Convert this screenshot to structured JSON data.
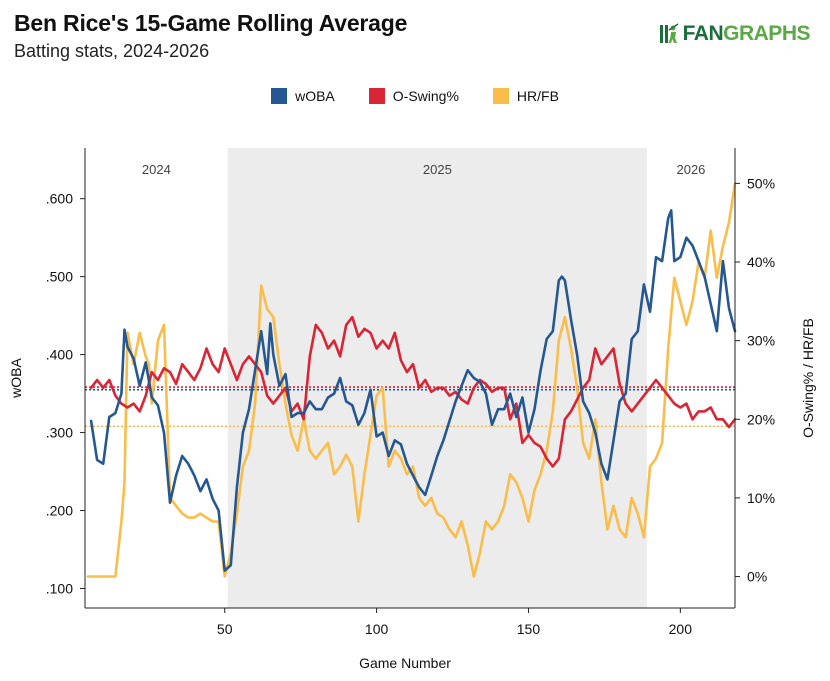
{
  "header": {
    "title": "Ben Rice's 15-Game Rolling Average",
    "subtitle": "Batting stats, 2024-2026",
    "logo_fan": "FAN",
    "logo_graphs": "GRAPHS"
  },
  "colors": {
    "woba": "#255892",
    "oswing": "#d92535",
    "hrfb": "#fbbd4a",
    "season_shade": "#ececec"
  },
  "icons": {
    "logo": "batter-silhouette-icon"
  },
  "chart_data": {
    "type": "line",
    "xlabel": "Game Number",
    "ylabel_left": "wOBA",
    "ylabel_right": "O-Swing% / HR/FB",
    "xlim": [
      4,
      218
    ],
    "ylim_left": [
      0.075,
      0.665
    ],
    "ylim_right": [
      -0.04,
      0.545
    ],
    "x_ticks": [
      50,
      100,
      150,
      200
    ],
    "x_tick_labels": [
      "50",
      "100",
      "150",
      "200"
    ],
    "y_left_ticks": [
      0.1,
      0.2,
      0.3,
      0.4,
      0.5,
      0.6
    ],
    "y_left_tick_labels": [
      ".100",
      ".200",
      ".300",
      ".400",
      ".500",
      ".600"
    ],
    "y_right_ticks": [
      0,
      0.1,
      0.2,
      0.3,
      0.4,
      0.5
    ],
    "y_right_tick_labels": [
      "0%",
      "10%",
      "20%",
      "30%",
      "40%",
      "50%"
    ],
    "seasons": [
      {
        "label": "2024",
        "start": 4,
        "end": 51,
        "shaded": false
      },
      {
        "label": "2025",
        "start": 51,
        "end": 189,
        "shaded": true
      },
      {
        "label": "2026",
        "start": 189,
        "end": 218,
        "shaded": false
      }
    ],
    "reference_lines": [
      {
        "series": "wOBA",
        "axis": "left",
        "value": 0.355
      },
      {
        "series": "O-Swing%",
        "axis": "right",
        "value": 0.241
      },
      {
        "series": "HR/FB",
        "axis": "right",
        "value": 0.191
      }
    ],
    "legend": [
      "wOBA",
      "O-Swing%",
      "HR/FB"
    ],
    "series": [
      {
        "name": "wOBA",
        "axis": "left",
        "color": "#255892",
        "x": [
          6,
          8,
          10,
          12,
          14,
          16,
          17,
          18,
          20,
          22,
          24,
          26,
          28,
          30,
          31,
          32,
          34,
          36,
          38,
          40,
          42,
          44,
          46,
          48,
          50,
          52,
          54,
          56,
          58,
          60,
          62,
          64,
          65,
          66,
          68,
          70,
          72,
          74,
          76,
          78,
          80,
          82,
          84,
          86,
          88,
          90,
          92,
          94,
          96,
          98,
          100,
          102,
          104,
          106,
          108,
          110,
          112,
          114,
          116,
          118,
          120,
          122,
          124,
          126,
          128,
          130,
          132,
          134,
          136,
          138,
          140,
          142,
          144,
          146,
          148,
          150,
          152,
          154,
          156,
          158,
          160,
          161,
          162,
          164,
          166,
          168,
          170,
          172,
          174,
          176,
          178,
          180,
          182,
          184,
          186,
          188,
          190,
          192,
          194,
          196,
          197,
          198,
          200,
          202,
          204,
          206,
          208,
          210,
          212,
          214,
          216,
          218
        ],
        "y": [
          0.315,
          0.265,
          0.26,
          0.32,
          0.325,
          0.35,
          0.432,
          0.41,
          0.395,
          0.36,
          0.39,
          0.345,
          0.335,
          0.3,
          0.255,
          0.21,
          0.245,
          0.27,
          0.26,
          0.245,
          0.225,
          0.24,
          0.215,
          0.2,
          0.123,
          0.13,
          0.23,
          0.3,
          0.33,
          0.38,
          0.43,
          0.375,
          0.44,
          0.4,
          0.36,
          0.375,
          0.32,
          0.325,
          0.325,
          0.34,
          0.33,
          0.33,
          0.345,
          0.35,
          0.37,
          0.34,
          0.335,
          0.31,
          0.325,
          0.355,
          0.295,
          0.3,
          0.27,
          0.29,
          0.285,
          0.26,
          0.245,
          0.23,
          0.22,
          0.245,
          0.27,
          0.29,
          0.315,
          0.34,
          0.36,
          0.38,
          0.37,
          0.365,
          0.35,
          0.31,
          0.33,
          0.33,
          0.35,
          0.32,
          0.345,
          0.3,
          0.33,
          0.38,
          0.42,
          0.43,
          0.495,
          0.5,
          0.495,
          0.445,
          0.4,
          0.34,
          0.325,
          0.3,
          0.26,
          0.24,
          0.29,
          0.34,
          0.35,
          0.42,
          0.43,
          0.49,
          0.455,
          0.525,
          0.52,
          0.575,
          0.585,
          0.52,
          0.525,
          0.55,
          0.54,
          0.52,
          0.5,
          0.465,
          0.43,
          0.52,
          0.46,
          0.43
        ]
      },
      {
        "name": "O-Swing%",
        "axis": "right",
        "color": "#d92535",
        "x": [
          6,
          8,
          10,
          12,
          14,
          16,
          18,
          20,
          22,
          24,
          26,
          28,
          30,
          32,
          34,
          36,
          38,
          40,
          42,
          44,
          46,
          48,
          50,
          52,
          54,
          56,
          58,
          60,
          62,
          64,
          66,
          68,
          70,
          72,
          74,
          76,
          78,
          80,
          82,
          84,
          86,
          88,
          90,
          92,
          94,
          96,
          98,
          100,
          102,
          104,
          106,
          108,
          110,
          112,
          114,
          116,
          118,
          120,
          122,
          124,
          126,
          128,
          130,
          132,
          134,
          136,
          138,
          140,
          142,
          144,
          146,
          148,
          150,
          152,
          154,
          156,
          158,
          160,
          162,
          164,
          166,
          168,
          170,
          172,
          174,
          176,
          178,
          180,
          182,
          184,
          186,
          188,
          190,
          192,
          194,
          196,
          198,
          200,
          202,
          204,
          206,
          208,
          210,
          212,
          214,
          216,
          218
        ],
        "y": [
          0.24,
          0.25,
          0.24,
          0.25,
          0.23,
          0.22,
          0.215,
          0.22,
          0.21,
          0.23,
          0.26,
          0.25,
          0.265,
          0.26,
          0.245,
          0.27,
          0.26,
          0.25,
          0.265,
          0.29,
          0.27,
          0.26,
          0.29,
          0.27,
          0.25,
          0.27,
          0.28,
          0.27,
          0.26,
          0.23,
          0.22,
          0.23,
          0.24,
          0.21,
          0.22,
          0.2,
          0.28,
          0.32,
          0.31,
          0.29,
          0.3,
          0.28,
          0.32,
          0.33,
          0.305,
          0.315,
          0.31,
          0.29,
          0.3,
          0.29,
          0.31,
          0.275,
          0.26,
          0.27,
          0.24,
          0.25,
          0.235,
          0.24,
          0.24,
          0.23,
          0.235,
          0.225,
          0.22,
          0.24,
          0.25,
          0.245,
          0.235,
          0.24,
          0.24,
          0.2,
          0.22,
          0.17,
          0.18,
          0.17,
          0.165,
          0.15,
          0.14,
          0.15,
          0.2,
          0.21,
          0.225,
          0.24,
          0.25,
          0.29,
          0.27,
          0.28,
          0.29,
          0.245,
          0.22,
          0.21,
          0.22,
          0.23,
          0.24,
          0.25,
          0.24,
          0.23,
          0.22,
          0.215,
          0.22,
          0.2,
          0.21,
          0.21,
          0.215,
          0.2,
          0.2,
          0.19,
          0.2
        ]
      },
      {
        "name": "HR/FB",
        "axis": "right",
        "color": "#fbbd4a",
        "x": [
          5,
          8,
          10,
          12,
          14,
          16,
          17,
          18,
          20,
          22,
          24,
          25,
          26,
          28,
          30,
          31,
          32,
          34,
          36,
          38,
          40,
          42,
          44,
          46,
          48,
          50,
          52,
          54,
          56,
          58,
          60,
          62,
          64,
          66,
          68,
          70,
          72,
          74,
          76,
          78,
          80,
          82,
          84,
          86,
          88,
          90,
          92,
          94,
          96,
          98,
          100,
          102,
          104,
          106,
          108,
          110,
          112,
          114,
          116,
          118,
          120,
          122,
          124,
          126,
          128,
          130,
          132,
          134,
          136,
          138,
          140,
          142,
          144,
          146,
          148,
          150,
          152,
          154,
          156,
          158,
          160,
          162,
          164,
          166,
          168,
          170,
          172,
          174,
          176,
          178,
          180,
          182,
          184,
          186,
          188,
          190,
          192,
          194,
          196,
          198,
          200,
          202,
          204,
          206,
          208,
          210,
          212,
          214,
          216,
          218
        ],
        "y": [
          0.0,
          0.0,
          0.0,
          0.0,
          0.0,
          0.07,
          0.12,
          0.31,
          0.27,
          0.31,
          0.28,
          0.27,
          0.22,
          0.3,
          0.32,
          0.21,
          0.1,
          0.09,
          0.08,
          0.075,
          0.075,
          0.08,
          0.075,
          0.07,
          0.07,
          0.0,
          0.03,
          0.08,
          0.14,
          0.16,
          0.22,
          0.37,
          0.34,
          0.33,
          0.27,
          0.22,
          0.18,
          0.16,
          0.2,
          0.16,
          0.15,
          0.16,
          0.17,
          0.13,
          0.14,
          0.155,
          0.14,
          0.07,
          0.13,
          0.18,
          0.23,
          0.24,
          0.14,
          0.16,
          0.15,
          0.13,
          0.14,
          0.1,
          0.09,
          0.1,
          0.08,
          0.075,
          0.06,
          0.05,
          0.07,
          0.04,
          0.0,
          0.03,
          0.07,
          0.06,
          0.07,
          0.09,
          0.13,
          0.12,
          0.1,
          0.07,
          0.11,
          0.13,
          0.16,
          0.21,
          0.3,
          0.33,
          0.29,
          0.24,
          0.17,
          0.15,
          0.2,
          0.12,
          0.06,
          0.09,
          0.06,
          0.05,
          0.1,
          0.08,
          0.05,
          0.14,
          0.15,
          0.17,
          0.29,
          0.38,
          0.35,
          0.32,
          0.35,
          0.4,
          0.38,
          0.44,
          0.38,
          0.42,
          0.45,
          0.5
        ]
      }
    ]
  }
}
